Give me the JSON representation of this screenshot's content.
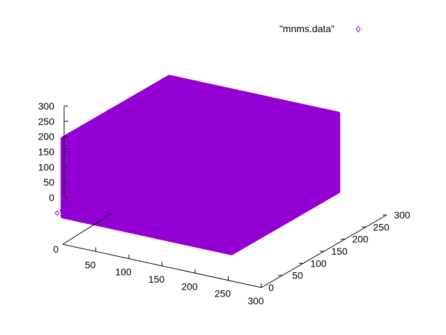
{
  "chart_data": {
    "type": "scatter",
    "dimension": "3d",
    "title": "",
    "xlabel": "",
    "ylabel": "",
    "zlabel": "",
    "grid": false,
    "legend_position": "top-right",
    "series": [
      {
        "name": "\"mnms.data\"",
        "marker": "diamond",
        "color": "#9400d3",
        "point_cloud": {
          "description_source": "dense RGB cube sample",
          "x_range": [
            0,
            255
          ],
          "y_range": [
            0,
            255
          ],
          "z_range": [
            0,
            255
          ]
        }
      }
    ],
    "x_axis": {
      "range": [
        0,
        300
      ],
      "ticks": [
        "0",
        "50",
        "100",
        "150",
        "200",
        "250",
        "300"
      ]
    },
    "y_axis": {
      "range": [
        0,
        300
      ],
      "ticks": [
        "0",
        "50",
        "100",
        "150",
        "200",
        "250",
        "300"
      ]
    },
    "z_axis": {
      "range": [
        0,
        300
      ],
      "ticks": [
        "0",
        "50",
        "100",
        "150",
        "200",
        "250",
        "300"
      ]
    }
  }
}
